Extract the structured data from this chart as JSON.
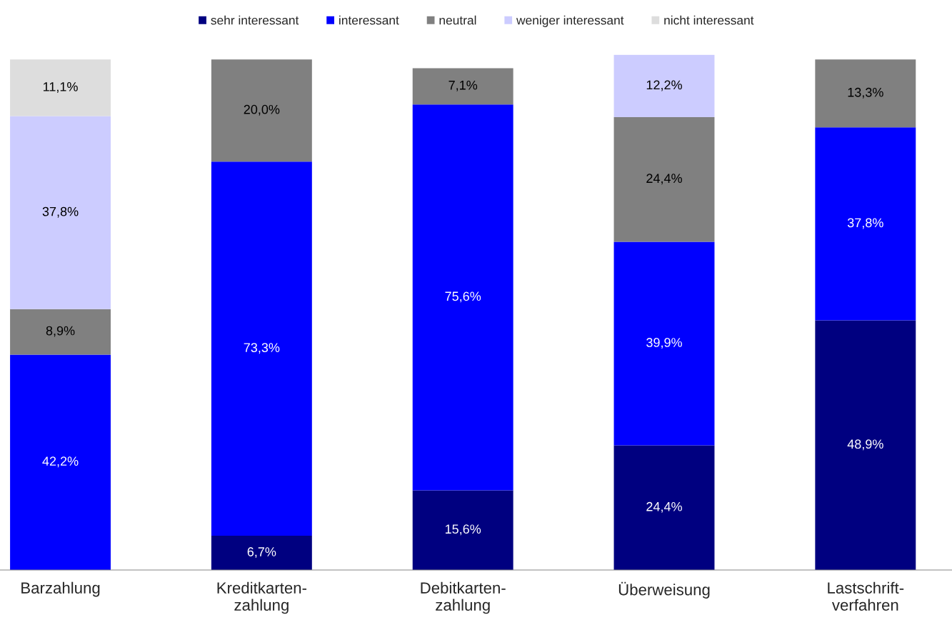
{
  "chart_data": {
    "type": "bar",
    "stacked": true,
    "legend": "top",
    "categories": [
      "Barzahlung",
      "Kreditkarten-\nzahlung",
      "Debitkarten-\nzahlung",
      "Überweisung",
      "Lastschrift-\nverfahren"
    ],
    "ylim": [
      0,
      101
    ],
    "series": [
      {
        "name": "sehr interessant",
        "color": "#000080",
        "values": [
          null,
          6.7,
          15.6,
          24.4,
          48.9
        ],
        "value_labels": [
          null,
          "6,7%",
          "15,6%",
          "24,4%",
          "48,9%"
        ]
      },
      {
        "name": "interessant",
        "color": "#0000ff",
        "values": [
          42.2,
          73.3,
          75.6,
          39.9,
          37.8
        ],
        "value_labels": [
          "42,2%",
          "73,3%",
          "75,6%",
          "39,9%",
          "37,8%"
        ]
      },
      {
        "name": "neutral",
        "color": "#808080",
        "values": [
          8.9,
          20.0,
          7.1,
          24.4,
          13.3
        ],
        "value_labels": [
          "8,9%",
          "20,0%",
          "7,1%",
          "24,4%",
          "13,3%"
        ]
      },
      {
        "name": "weniger interessant",
        "color": "#ccccff",
        "values": [
          37.8,
          null,
          null,
          12.2,
          null
        ],
        "value_labels": [
          "37,8%",
          null,
          null,
          "12,2%",
          null
        ]
      },
      {
        "name": "nicht interessant",
        "color": "#dddddd",
        "values": [
          11.1,
          null,
          null,
          null,
          null
        ],
        "value_labels": [
          "11,1%",
          null,
          null,
          null,
          null
        ]
      }
    ]
  }
}
